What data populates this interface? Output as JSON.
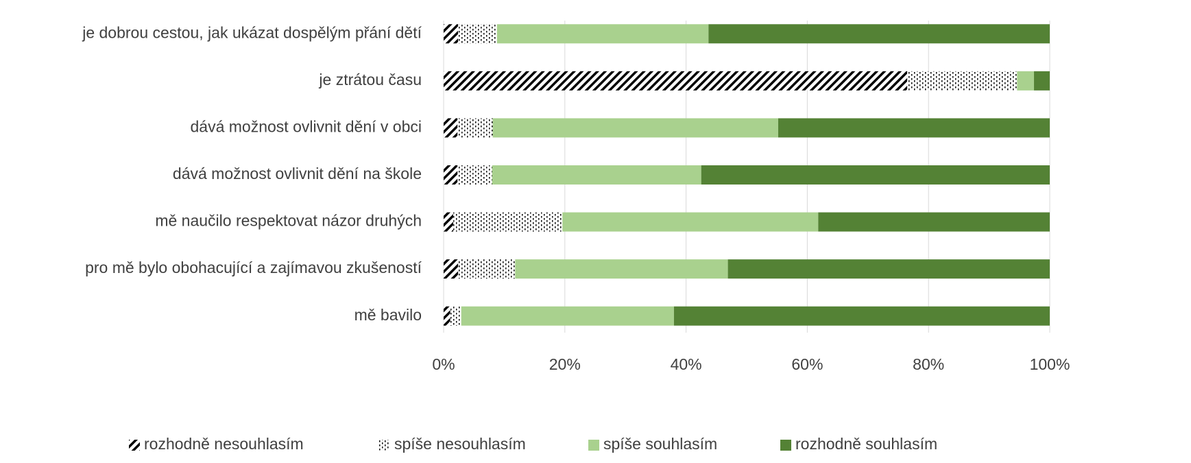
{
  "chart_data": {
    "type": "stacked-bar-horizontal",
    "categories": [
      "je dobrou cestou, jak ukázat dospělým přání dětí",
      "je ztrátou času",
      "dává možnost ovlivnit dění v obci",
      "dává možnost ovlivnit dění na škole",
      "mě naučilo respektovat názor druhých",
      "pro mě bylo obohacující a zajímavou zkušeností",
      "mě bavilo"
    ],
    "series": [
      {
        "name": "rozhodně nesouhlasím",
        "color": "#000000",
        "pattern": "hatch",
        "values": [
          2.4,
          76.5,
          2.3,
          2.3,
          1.6,
          2.4,
          1.1
        ]
      },
      {
        "name": "spíše nesouhlasím",
        "color": "#000000",
        "pattern": "dots",
        "values": [
          6.4,
          18.1,
          5.8,
          5.7,
          18.0,
          9.4,
          1.8
        ]
      },
      {
        "name": "spíše souhlasím",
        "color": "#a9d18e",
        "values": [
          34.9,
          2.8,
          47.1,
          34.5,
          42.2,
          35.1,
          35.1
        ]
      },
      {
        "name": "rozhodně souhlasím",
        "color": "#548235",
        "values": [
          56.3,
          2.6,
          44.8,
          57.5,
          38.2,
          53.1,
          62.0
        ]
      }
    ],
    "xlim": [
      0,
      100
    ],
    "xticks": [
      {
        "value": 0,
        "label": "0%"
      },
      {
        "value": 20,
        "label": "20%"
      },
      {
        "value": 40,
        "label": "40%"
      },
      {
        "value": 60,
        "label": "60%"
      },
      {
        "value": 80,
        "label": "80%"
      },
      {
        "value": 100,
        "label": "100%"
      }
    ],
    "grid": true,
    "legend": "bottom"
  }
}
